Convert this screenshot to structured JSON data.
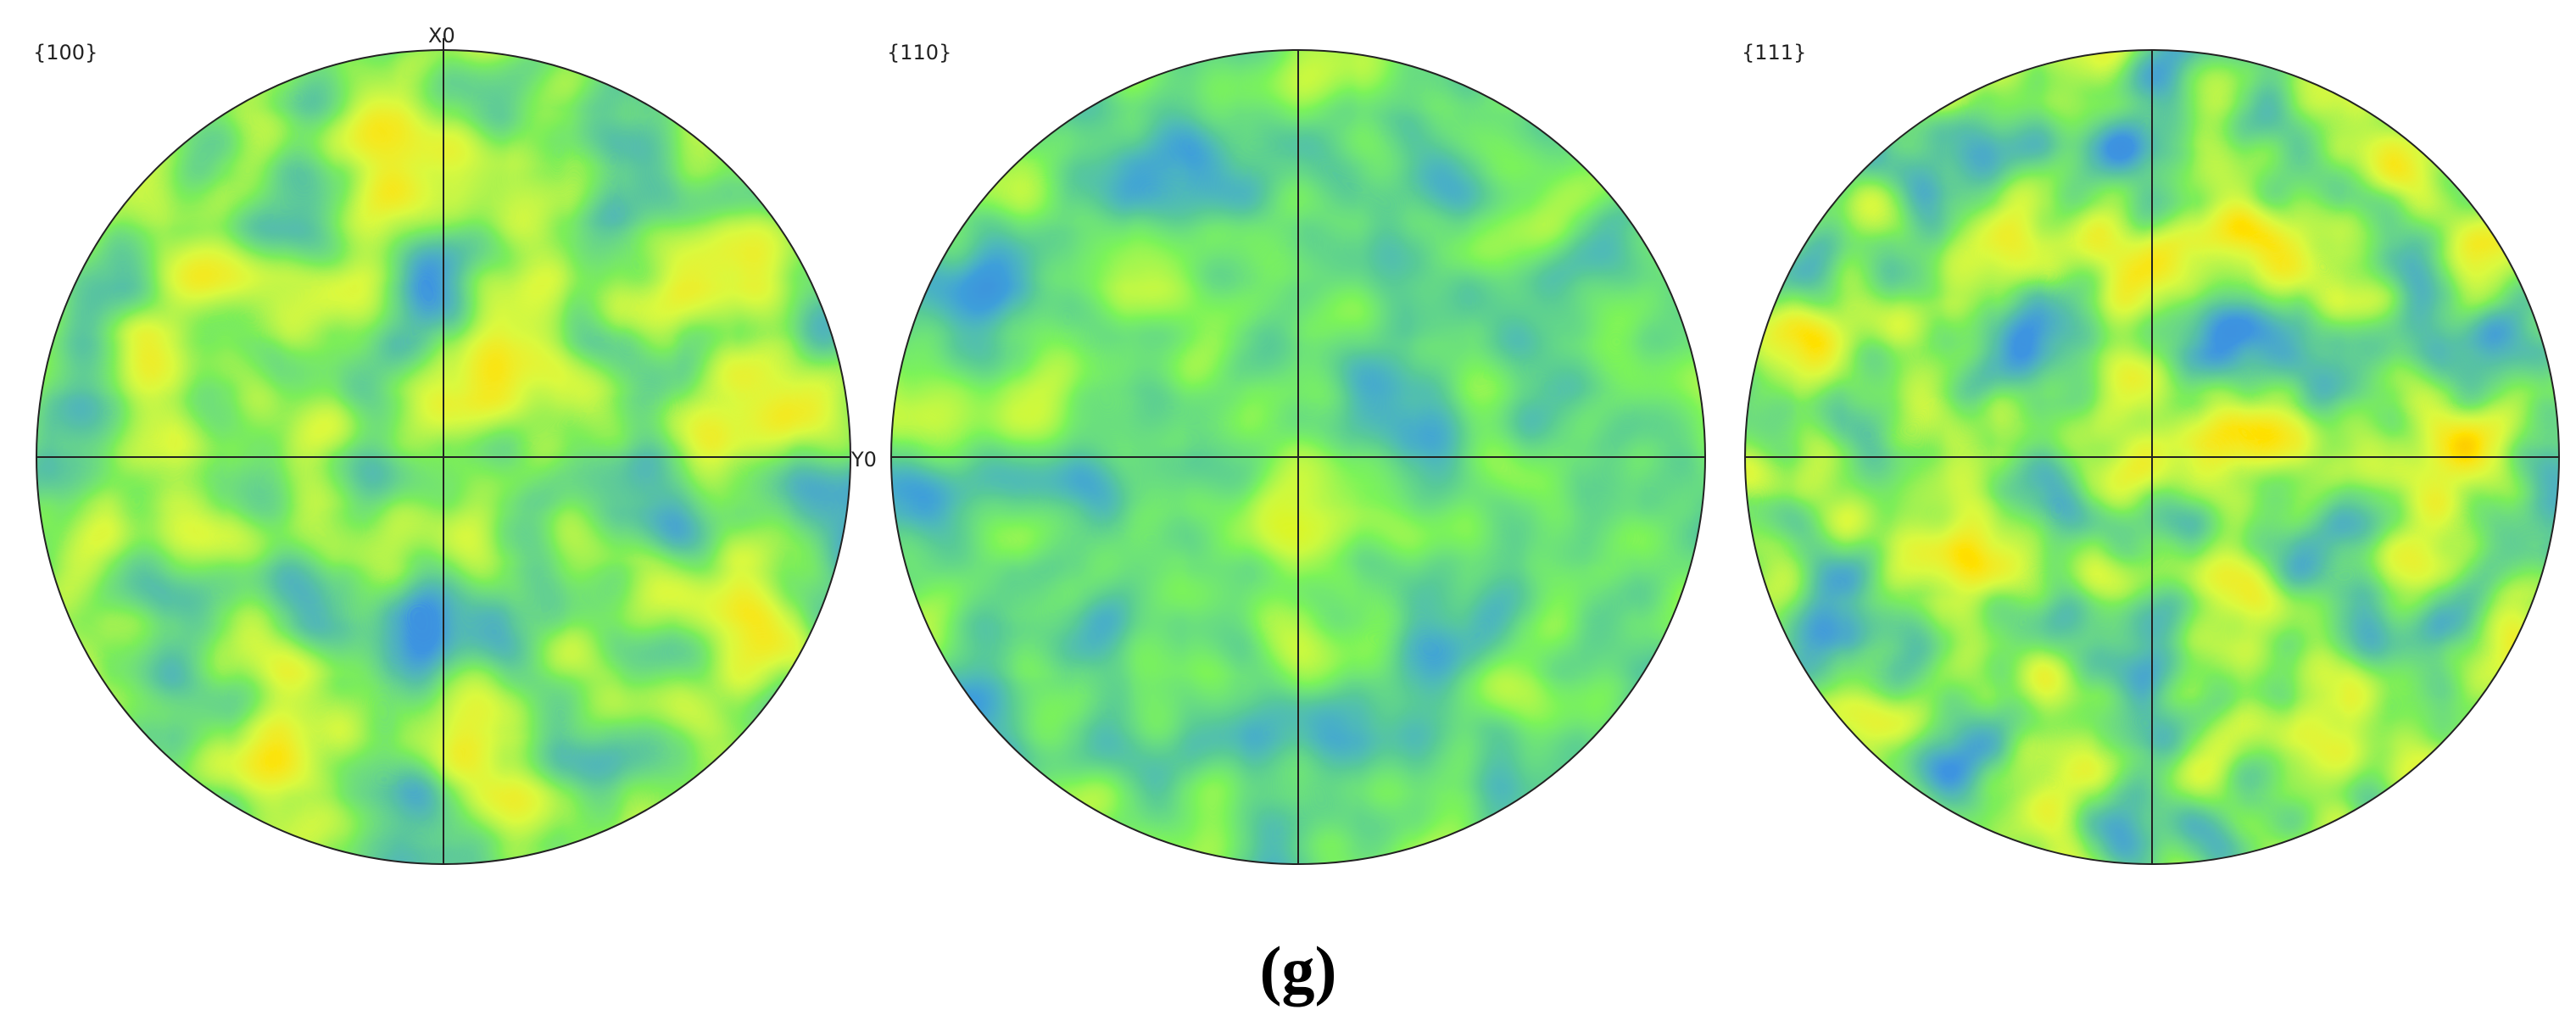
{
  "panels": [
    {
      "label": "{100}"
    },
    {
      "label": "{110}"
    },
    {
      "label": "{111}"
    }
  ],
  "axis_labels": {
    "x": "X0",
    "y": "Y0"
  },
  "caption": "(g)"
}
